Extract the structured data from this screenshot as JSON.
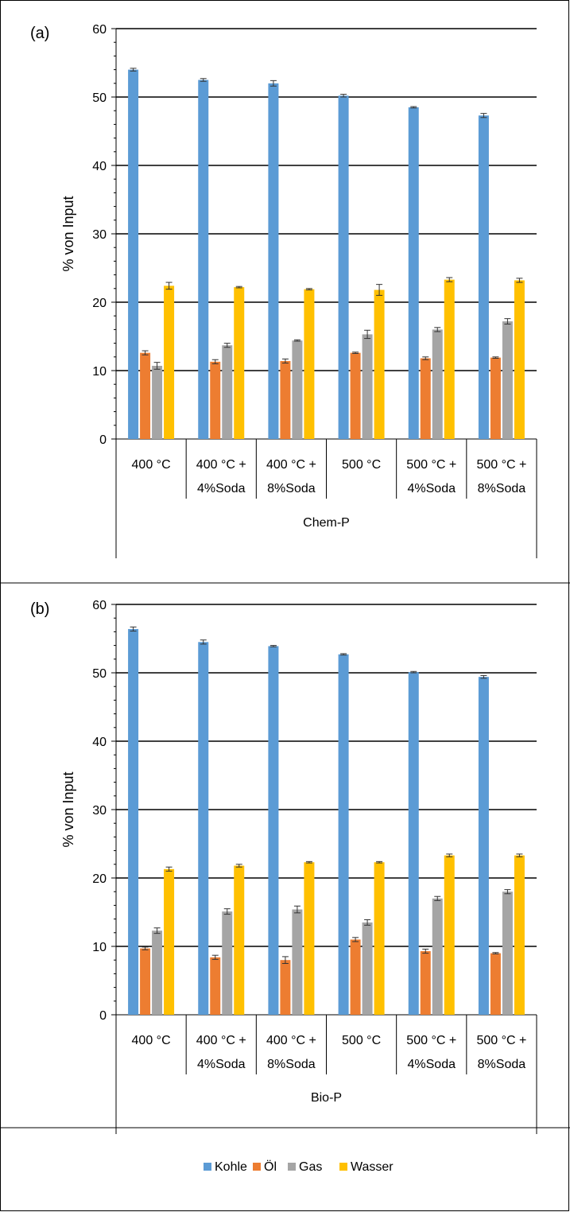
{
  "chart_data": [
    {
      "type": "bar",
      "panel_label": "(a)",
      "group_label": "Chem-P",
      "ylabel": "% von Input",
      "ylim": [
        0,
        60
      ],
      "yticks": [
        0,
        10,
        20,
        30,
        40,
        50,
        60
      ],
      "grid": true,
      "categories": [
        [
          "400  °C",
          ""
        ],
        [
          "400 °C +",
          "4%Soda"
        ],
        [
          "400 °C +",
          "8%Soda"
        ],
        [
          "500 °C",
          ""
        ],
        [
          "500 °C +",
          "4%Soda"
        ],
        [
          "500 °C +",
          "8%Soda"
        ]
      ],
      "series": [
        {
          "name": "Kohle",
          "values": [
            54.0,
            52.5,
            52.0,
            50.2,
            48.5,
            47.3
          ],
          "errors": [
            0.2,
            0.2,
            0.4,
            0.2,
            0.1,
            0.3
          ]
        },
        {
          "name": "Öl",
          "values": [
            12.6,
            11.3,
            11.4,
            12.6,
            11.8,
            11.9
          ],
          "errors": [
            0.3,
            0.3,
            0.3,
            0.1,
            0.2,
            0.1
          ]
        },
        {
          "name": "Gas",
          "values": [
            10.7,
            13.7,
            14.4,
            15.3,
            16.0,
            17.2
          ],
          "errors": [
            0.5,
            0.3,
            0.1,
            0.6,
            0.3,
            0.4
          ]
        },
        {
          "name": "Wasser",
          "values": [
            22.4,
            22.2,
            21.9,
            21.8,
            23.3,
            23.2
          ],
          "errors": [
            0.5,
            0.1,
            0.1,
            0.8,
            0.3,
            0.3
          ]
        }
      ]
    },
    {
      "type": "bar",
      "panel_label": "(b)",
      "group_label": "Bio-P",
      "ylabel": "% von Input",
      "ylim": [
        0,
        60
      ],
      "yticks": [
        0,
        10,
        20,
        30,
        40,
        50,
        60
      ],
      "grid": true,
      "categories": [
        [
          "400  °C",
          ""
        ],
        [
          "400 °C +",
          "4%Soda"
        ],
        [
          "400 °C +",
          "8%Soda"
        ],
        [
          "500 °C",
          ""
        ],
        [
          "500 °C +",
          "4%Soda"
        ],
        [
          "500 °C +",
          "8%Soda"
        ]
      ],
      "series": [
        {
          "name": "Kohle",
          "values": [
            56.4,
            54.5,
            53.9,
            52.7,
            50.1,
            49.4
          ],
          "errors": [
            0.3,
            0.3,
            0.1,
            0.1,
            0.1,
            0.2
          ]
        },
        {
          "name": "Öl",
          "values": [
            9.7,
            8.4,
            8.0,
            11.0,
            9.3,
            9.0
          ],
          "errors": [
            0.2,
            0.3,
            0.5,
            0.3,
            0.3,
            0.1
          ]
        },
        {
          "name": "Gas",
          "values": [
            12.3,
            15.1,
            15.4,
            13.5,
            17.0,
            18.0
          ],
          "errors": [
            0.4,
            0.4,
            0.5,
            0.4,
            0.3,
            0.3
          ]
        },
        {
          "name": "Wasser",
          "values": [
            21.3,
            21.8,
            22.3,
            22.3,
            23.3,
            23.3
          ],
          "errors": [
            0.3,
            0.2,
            0.1,
            0.1,
            0.2,
            0.2
          ]
        }
      ]
    }
  ],
  "legend": {
    "placement": "bottom",
    "items": [
      {
        "label": "Kohle",
        "color": "#5B9BD5"
      },
      {
        "label": "Öl",
        "color": "#ED7D31"
      },
      {
        "label": "Gas",
        "color": "#A5A5A5"
      },
      {
        "label": "Wasser",
        "color": "#FFC000"
      }
    ]
  },
  "colors": {
    "Kohle": "#5B9BD5",
    "Öl": "#ED7D31",
    "Gas": "#A5A5A5",
    "Wasser": "#FFC000"
  }
}
